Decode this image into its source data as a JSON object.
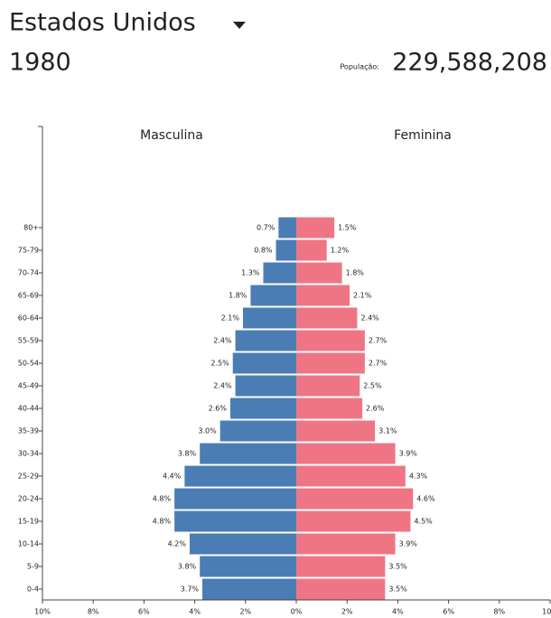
{
  "chart_data": {
    "type": "pyramid",
    "title": "Estados Unidos",
    "subtitle": "1980",
    "population_label": "População:",
    "population": "229,588,208",
    "categories": [
      "0-4",
      "5-9",
      "10-14",
      "15-19",
      "20-24",
      "25-29",
      "30-34",
      "35-39",
      "40-44",
      "45-49",
      "50-54",
      "55-59",
      "60-64",
      "65-69",
      "70-74",
      "75-79",
      "80+"
    ],
    "series": [
      {
        "name": "Masculina",
        "color": "#4a7db4",
        "values": [
          3.7,
          3.8,
          4.2,
          4.8,
          4.8,
          4.4,
          3.8,
          3.0,
          2.6,
          2.4,
          2.5,
          2.4,
          2.1,
          1.8,
          1.3,
          0.8,
          0.7
        ],
        "value_labels": [
          "3.7%",
          "3.8%",
          "4.2%",
          "4.8%",
          "4.8%",
          "4.4%",
          "3.8%",
          "3.0%",
          "2.6%",
          "2.4%",
          "2.5%",
          "2.4%",
          "2.1%",
          "1.8%",
          "1.3%",
          "0.8%",
          "0.7%"
        ]
      },
      {
        "name": "Feminina",
        "color": "#ef7585",
        "values": [
          3.5,
          3.5,
          3.9,
          4.5,
          4.6,
          4.3,
          3.9,
          3.1,
          2.6,
          2.5,
          2.7,
          2.7,
          2.4,
          2.1,
          1.8,
          1.2,
          1.5
        ],
        "value_labels": [
          "3.5%",
          "3.5%",
          "3.9%",
          "4.5%",
          "4.6%",
          "4.3%",
          "3.9%",
          "3.1%",
          "2.6%",
          "2.5%",
          "2.7%",
          "2.7%",
          "2.4%",
          "2.1%",
          "1.8%",
          "1.2%",
          "1.5%"
        ]
      }
    ],
    "xlim": [
      -10,
      10
    ],
    "xticks": [
      {
        "value": -10,
        "label": "10%"
      },
      {
        "value": -8,
        "label": "8%"
      },
      {
        "value": -6,
        "label": "6%"
      },
      {
        "value": -4,
        "label": "4%"
      },
      {
        "value": -2,
        "label": "2%"
      },
      {
        "value": 0,
        "label": "0%"
      },
      {
        "value": 2,
        "label": "2%"
      },
      {
        "value": 4,
        "label": "4%"
      },
      {
        "value": 6,
        "label": "6%"
      },
      {
        "value": 8,
        "label": "8%"
      },
      {
        "value": 10,
        "label": "10%"
      }
    ]
  }
}
